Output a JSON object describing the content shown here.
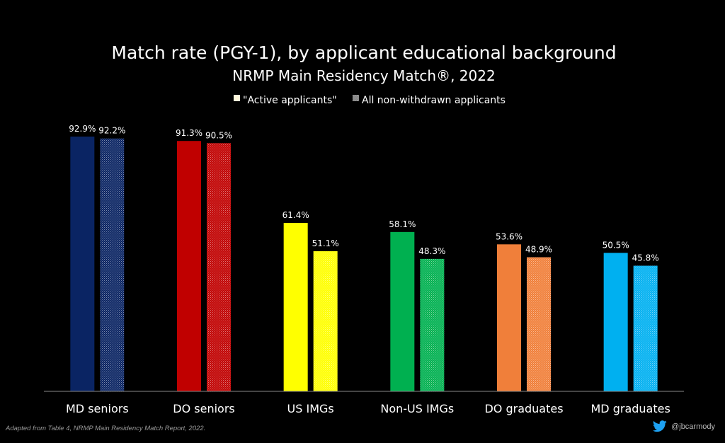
{
  "chart_data": {
    "type": "bar",
    "title": "Match rate (PGY-1), by applicant educational background",
    "subtitle": "NRMP Main Residency Match®, 2022",
    "categories": [
      "MD seniors",
      "DO seniors",
      "US IMGs",
      "Non-US IMGs",
      "DO graduates",
      "MD graduates"
    ],
    "category_colors": [
      "#0a2463",
      "#c00000",
      "#ffff00",
      "#00b050",
      "#f07f3a",
      "#00b0f0"
    ],
    "series": [
      {
        "name": "\"Active applicants\"",
        "values": [
          92.9,
          91.3,
          61.4,
          58.1,
          53.6,
          50.5
        ],
        "value_labels": [
          "92.9%",
          "91.3%",
          "61.4%",
          "58.1%",
          "53.6%",
          "50.5%"
        ],
        "pattern": "solid"
      },
      {
        "name": "All non-withdrawn applicants",
        "values": [
          92.2,
          90.5,
          51.1,
          48.3,
          48.9,
          45.8
        ],
        "value_labels": [
          "92.2%",
          "90.5%",
          "51.1%",
          "48.3%",
          "48.9%",
          "45.8%"
        ],
        "pattern": "dotted"
      }
    ],
    "ylim": [
      0,
      100
    ],
    "grid": false,
    "legend_position": "top-center"
  },
  "source_note": "Adapted from Table 4, NRMP Main Residency Match Report, 2022.",
  "credit": {
    "handle": "@jbcarmody",
    "icon": "twitter-icon"
  }
}
